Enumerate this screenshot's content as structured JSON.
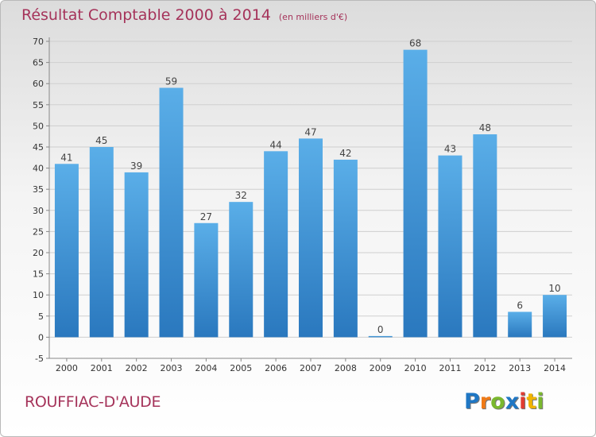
{
  "chart_data": {
    "type": "bar",
    "title": "Résultat Comptable 2000 à 2014",
    "unit_note": "(en milliers d'€)",
    "categories": [
      "2000",
      "2001",
      "2002",
      "2003",
      "2004",
      "2005",
      "2006",
      "2007",
      "2008",
      "2009",
      "2010",
      "2011",
      "2012",
      "2013",
      "2014"
    ],
    "values": [
      41,
      45,
      39,
      59,
      27,
      32,
      44,
      47,
      42,
      0,
      68,
      43,
      48,
      6,
      10
    ],
    "ylim": [
      -5,
      70
    ],
    "yticks": [
      -5,
      0,
      5,
      10,
      15,
      20,
      25,
      30,
      35,
      40,
      45,
      50,
      55,
      60,
      65,
      70
    ],
    "grid": true,
    "bar_color": "#4a9ad8"
  },
  "footer": {
    "place": "ROUFFIAC-D'AUDE",
    "logo_letters": [
      "P",
      "r",
      "o",
      "x",
      "i",
      "t",
      "i"
    ],
    "logo_colors": [
      "#1f77c4",
      "#f07a16",
      "#7ab82e",
      "#1f77c4",
      "#e03c31",
      "#f0b400",
      "#7ab82e"
    ]
  }
}
